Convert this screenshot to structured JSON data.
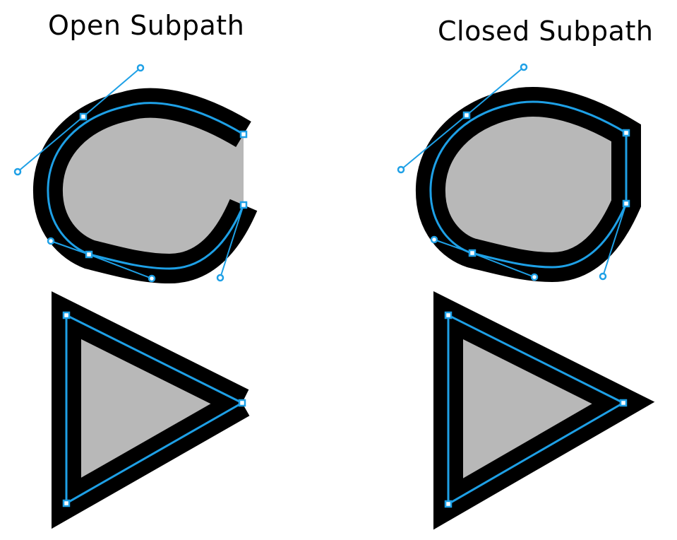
{
  "labels": {
    "open": "Open Subpath",
    "closed": "Closed Subpath"
  },
  "colors": {
    "background": "#ffffff",
    "fill": "#b8b8b8",
    "stroke": "#000000",
    "path": "#1ea0e6",
    "anchor_fill": "#ffffff"
  },
  "icons": [
    "anchor-point-icon",
    "control-handle-icon"
  ]
}
